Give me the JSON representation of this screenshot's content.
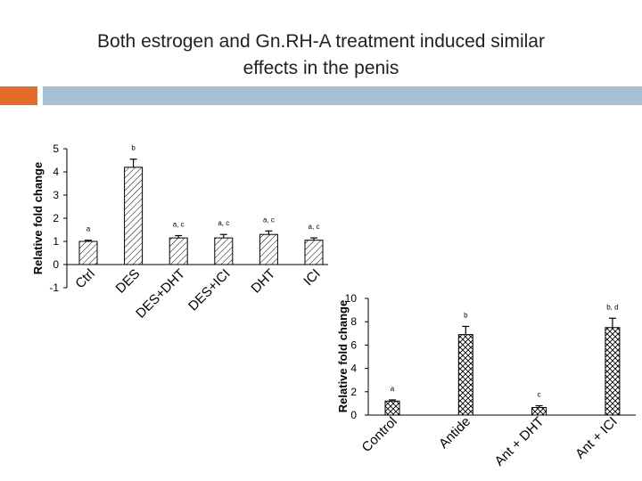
{
  "slide": {
    "title_line1": "Both estrogen and Gn.RH-A treatment induced similar",
    "title_line2": "effects in the penis"
  },
  "colors": {
    "accent_strip": "#e46c2b",
    "header_strip": "#a8bfd6",
    "bar_stroke": "#000000"
  },
  "chart_data": [
    {
      "type": "bar",
      "fill_pattern": "diagonal-hatch",
      "categories": [
        "Ctrl",
        "DES",
        "DES+DHT",
        "DES+ICI",
        "DHT",
        "ICI"
      ],
      "values": [
        1.0,
        4.2,
        1.15,
        1.15,
        1.3,
        1.05
      ],
      "errors": [
        0.05,
        0.35,
        0.1,
        0.15,
        0.15,
        0.1
      ],
      "annotations": [
        "a",
        "b",
        "a, c",
        "a, c",
        "a, c",
        "a, c"
      ],
      "xlabel": "",
      "ylabel": "Relative fold change",
      "ylim": [
        -1,
        5
      ],
      "yticks": [
        -1,
        0,
        1,
        2,
        3,
        4,
        5
      ],
      "grid": false
    },
    {
      "type": "bar",
      "fill_pattern": "cross-hatch",
      "categories": [
        "Control",
        "Antide",
        "Ant + DHT",
        "Ant + ICI"
      ],
      "values": [
        1.2,
        6.9,
        0.65,
        7.5
      ],
      "errors": [
        0.1,
        0.7,
        0.15,
        0.8
      ],
      "annotations": [
        "a",
        "b",
        "c",
        "b, d"
      ],
      "xlabel": "",
      "ylabel": "Relative fold change",
      "ylim": [
        0,
        10
      ],
      "yticks": [
        0,
        2,
        4,
        6,
        8,
        10
      ],
      "grid": false
    }
  ]
}
